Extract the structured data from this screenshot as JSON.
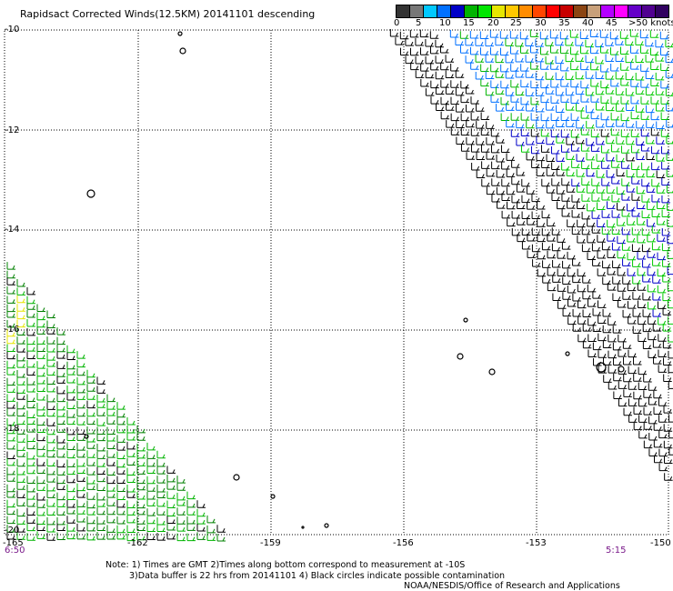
{
  "title": "Rapidsact Corrected Winds(12.5KM) 20141101 descending",
  "lat_labels": [
    "-10",
    "-12",
    "-14",
    "-16",
    "-18",
    "-20"
  ],
  "lon_labels": [
    "-165",
    "-162",
    "-159",
    "-156",
    "-153",
    "-150"
  ],
  "time_left": "6:50",
  "time_right": "5:15",
  "scale": {
    "labels": [
      "0",
      "5",
      "10",
      "15",
      "20",
      "25",
      "30",
      "35",
      "40",
      "45",
      ">50 knots"
    ],
    "colors": [
      "#333333",
      "#777777",
      "#00c8ff",
      "#0070ff",
      "#0000c8",
      "#00b400",
      "#00e600",
      "#e6e600",
      "#ffc800",
      "#ff8c00",
      "#ff4600",
      "#ff0000",
      "#c80000",
      "#8b4513",
      "#c8a07a",
      "#b400ff",
      "#ff00ff",
      "#6400c8",
      "#500090",
      "#300060"
    ]
  },
  "notes": {
    "line1": "Note: 1) Times are GMT 2)Times along bottom correspond to measurement at -10S",
    "line2": "3)Data buffer is 22 hrs from 20141101 4) Black circles indicate possible contamination",
    "credit": "NOAA/NESDIS/Office of Research and Applications"
  },
  "map_data": {
    "lat_range": [
      -20,
      -10
    ],
    "lon_range": [
      -165,
      -150
    ],
    "grid": true,
    "wind_color_key_knots": [
      "black: 0-5",
      "blue: 10-15",
      "green: 15-20",
      "yellow: 20-25"
    ]
  }
}
